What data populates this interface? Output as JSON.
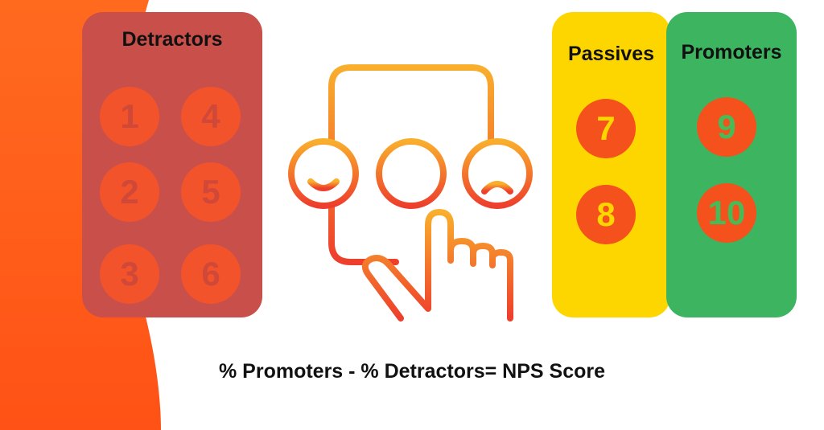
{
  "groups": {
    "detractors": {
      "label": "Detractors",
      "scores": [
        "1",
        "4",
        "2",
        "5",
        "3",
        "6"
      ],
      "color": "#c9504a"
    },
    "passives": {
      "label": "Passives",
      "scores": [
        "7",
        "8"
      ],
      "color": "#fdd600"
    },
    "promoters": {
      "label": "Promoters",
      "scores": [
        "9",
        "10"
      ],
      "color": "#3db45f"
    }
  },
  "illustration": {
    "icons": [
      "smartphone-icon",
      "smiley-happy-icon",
      "smiley-neutral-icon",
      "smiley-sad-icon",
      "pointing-hand-icon"
    ],
    "gradient": [
      "#f9ae2c",
      "#ee3e2c"
    ]
  },
  "formula": "% Promoters - % Detractors= NPS Score",
  "accent_color": "#f4511d"
}
